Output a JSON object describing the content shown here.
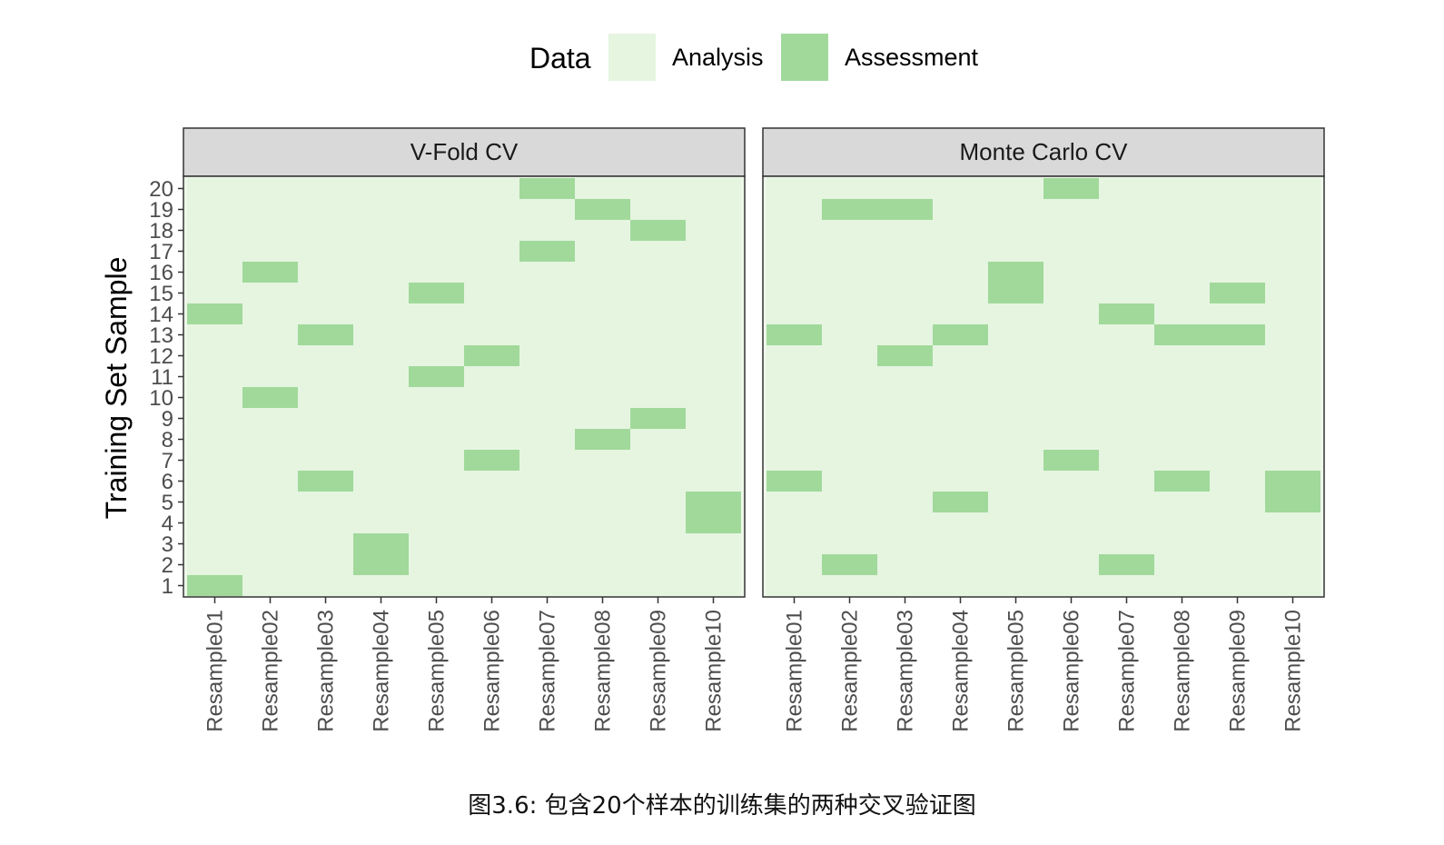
{
  "colors": {
    "analysis": "#e5f5e0",
    "assessment": "#a1d99b",
    "strip_fill": "#d9d9d9",
    "border": "#333333"
  },
  "caption": "图3.6: 包含20个样本的训练集的两种交叉验证图",
  "chart_data": {
    "type": "heatmap",
    "legend": {
      "title": "Data",
      "placement": "top",
      "entries": [
        "Analysis",
        "Assessment"
      ]
    },
    "ylabel": "Training Set Sample",
    "xlabel": "",
    "y_categories": [
      "1",
      "2",
      "3",
      "4",
      "5",
      "6",
      "7",
      "8",
      "9",
      "10",
      "11",
      "12",
      "13",
      "14",
      "15",
      "16",
      "17",
      "18",
      "19",
      "20"
    ],
    "x_categories": [
      "Resample01",
      "Resample02",
      "Resample03",
      "Resample04",
      "Resample05",
      "Resample06",
      "Resample07",
      "Resample08",
      "Resample09",
      "Resample10"
    ],
    "facets": [
      {
        "name": "V-Fold CV",
        "assessment": {
          "Resample01": [
            1,
            14
          ],
          "Resample02": [
            10,
            16
          ],
          "Resample03": [
            6,
            13
          ],
          "Resample04": [
            2,
            3
          ],
          "Resample05": [
            11,
            15
          ],
          "Resample06": [
            7,
            12
          ],
          "Resample07": [
            17,
            20
          ],
          "Resample08": [
            8,
            19
          ],
          "Resample09": [
            9,
            18
          ],
          "Resample10": [
            4,
            5
          ]
        }
      },
      {
        "name": "Monte Carlo CV",
        "assessment": {
          "Resample01": [
            6,
            13
          ],
          "Resample02": [
            2,
            19
          ],
          "Resample03": [
            12,
            19
          ],
          "Resample04": [
            5,
            13
          ],
          "Resample05": [
            15,
            16
          ],
          "Resample06": [
            7,
            20
          ],
          "Resample07": [
            2,
            14
          ],
          "Resample08": [
            6,
            13
          ],
          "Resample09": [
            13,
            15
          ],
          "Resample10": [
            5,
            6
          ]
        }
      }
    ]
  }
}
